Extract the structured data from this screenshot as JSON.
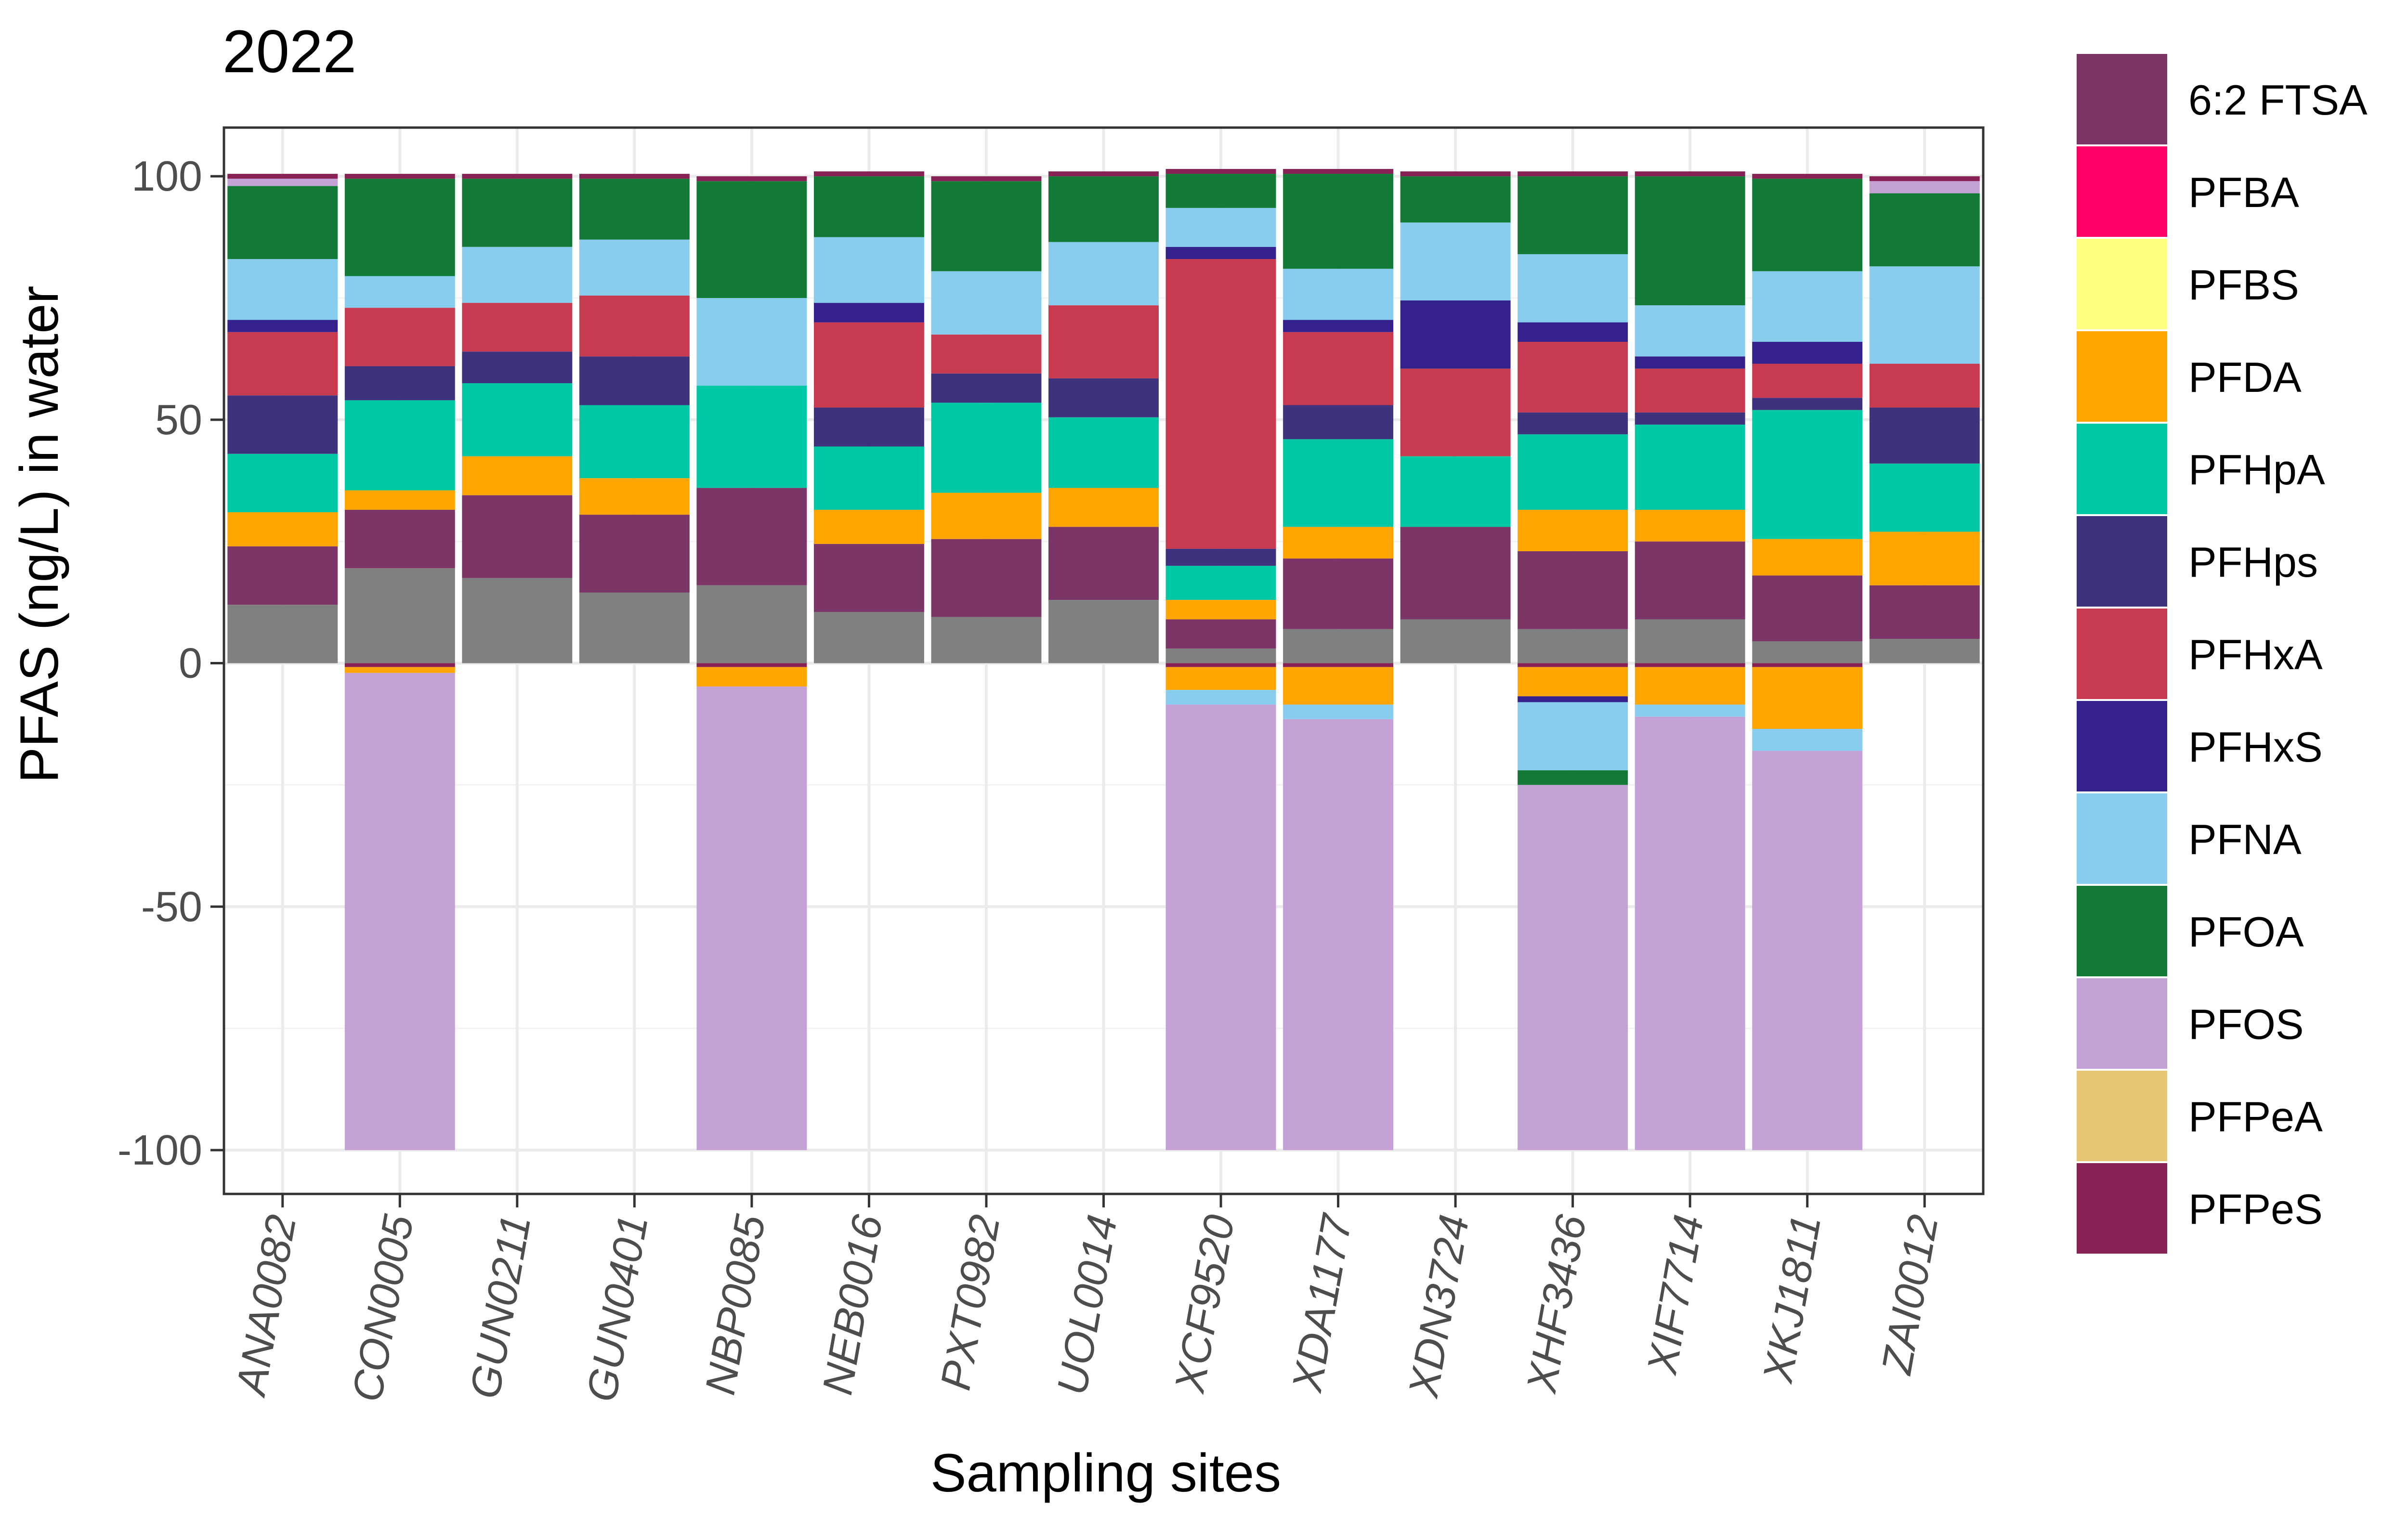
{
  "chart_data": {
    "type": "bar",
    "stacked": true,
    "title": "2022",
    "xlabel": "Sampling sites",
    "ylabel": "PFAS (ng/L) in water",
    "ylim": [
      -109,
      110
    ],
    "yticks": [
      -100,
      -50,
      0,
      50,
      100
    ],
    "ytick_labels": [
      "-100",
      "-50",
      "0",
      "50",
      "100"
    ],
    "grid": true,
    "legend_position": "right",
    "categories": [
      "ANA0082",
      "CON0005",
      "GUN0211",
      "GUN0401",
      "NBP0085",
      "NEB0016",
      "PXT0982",
      "UOL0014",
      "XCF9520",
      "XDA1177",
      "XDN3724",
      "XHF3436",
      "XIF7714",
      "XKJ1811",
      "ZAI0012"
    ],
    "legend": [
      {
        "name": "6:2 FTSA",
        "color": "#7b3567"
      },
      {
        "name": "PFBA",
        "color": "#ff0066"
      },
      {
        "name": "PFBS",
        "color": "#ffff80"
      },
      {
        "name": "PFDA",
        "color": "#ffa500"
      },
      {
        "name": "PFHpA",
        "color": "#00c8a4"
      },
      {
        "name": "PFHps",
        "color": "#3f327c"
      },
      {
        "name": "PFHxA",
        "color": "#c83a50"
      },
      {
        "name": "PFHxS",
        "color": "#34218b"
      },
      {
        "name": "PFNA",
        "color": "#88ccee"
      },
      {
        "name": "PFOA",
        "color": "#137936"
      },
      {
        "name": "PFOS",
        "color": "#c4a2d6"
      },
      {
        "name": "PFPeA",
        "color": "#e6c673"
      },
      {
        "name": "PFPeS",
        "color": "#882255"
      }
    ],
    "unlabeled_segment_color": "#808080",
    "positive_stacks": [
      [
        {
          "c": "#808080",
          "v": 12
        },
        {
          "c": "#7b3567",
          "v": 12
        },
        {
          "c": "#ffa500",
          "v": 7
        },
        {
          "c": "#00c8a4",
          "v": 12
        },
        {
          "c": "#3f327c",
          "v": 12
        },
        {
          "c": "#c83a50",
          "v": 13
        },
        {
          "c": "#34218b",
          "v": 2.5
        },
        {
          "c": "#88ccee",
          "v": 12.5
        },
        {
          "c": "#137936",
          "v": 15
        },
        {
          "c": "#c4a2d6",
          "v": 1.5
        },
        {
          "c": "#882255",
          "v": 1
        }
      ],
      [
        {
          "c": "#808080",
          "v": 19.5
        },
        {
          "c": "#7b3567",
          "v": 12
        },
        {
          "c": "#ffa500",
          "v": 4
        },
        {
          "c": "#00c8a4",
          "v": 18.5
        },
        {
          "c": "#3f327c",
          "v": 7
        },
        {
          "c": "#c83a50",
          "v": 12
        },
        {
          "c": "#88ccee",
          "v": 6.5
        },
        {
          "c": "#137936",
          "v": 20
        },
        {
          "c": "#882255",
          "v": 1
        }
      ],
      [
        {
          "c": "#808080",
          "v": 17.5
        },
        {
          "c": "#7b3567",
          "v": 17
        },
        {
          "c": "#ffa500",
          "v": 8
        },
        {
          "c": "#00c8a4",
          "v": 15
        },
        {
          "c": "#3f327c",
          "v": 6.5
        },
        {
          "c": "#c83a50",
          "v": 10
        },
        {
          "c": "#88ccee",
          "v": 11.5
        },
        {
          "c": "#137936",
          "v": 14
        },
        {
          "c": "#882255",
          "v": 1
        }
      ],
      [
        {
          "c": "#808080",
          "v": 14.5
        },
        {
          "c": "#7b3567",
          "v": 16
        },
        {
          "c": "#ffa500",
          "v": 7.5
        },
        {
          "c": "#00c8a4",
          "v": 15
        },
        {
          "c": "#3f327c",
          "v": 10
        },
        {
          "c": "#c83a50",
          "v": 12.5
        },
        {
          "c": "#88ccee",
          "v": 11.5
        },
        {
          "c": "#137936",
          "v": 12.5
        },
        {
          "c": "#882255",
          "v": 1
        }
      ],
      [
        {
          "c": "#808080",
          "v": 16
        },
        {
          "c": "#7b3567",
          "v": 20
        },
        {
          "c": "#00c8a4",
          "v": 21
        },
        {
          "c": "#88ccee",
          "v": 18
        },
        {
          "c": "#137936",
          "v": 24
        },
        {
          "c": "#882255",
          "v": 1
        }
      ],
      [
        {
          "c": "#808080",
          "v": 10.5
        },
        {
          "c": "#7b3567",
          "v": 14
        },
        {
          "c": "#ffa500",
          "v": 7
        },
        {
          "c": "#00c8a4",
          "v": 13
        },
        {
          "c": "#3f327c",
          "v": 8
        },
        {
          "c": "#c83a50",
          "v": 17.5
        },
        {
          "c": "#34218b",
          "v": 4
        },
        {
          "c": "#88ccee",
          "v": 13.5
        },
        {
          "c": "#137936",
          "v": 12.5
        },
        {
          "c": "#882255",
          "v": 1
        }
      ],
      [
        {
          "c": "#808080",
          "v": 9.5
        },
        {
          "c": "#7b3567",
          "v": 16
        },
        {
          "c": "#ffa500",
          "v": 9.5
        },
        {
          "c": "#00c8a4",
          "v": 18.5
        },
        {
          "c": "#3f327c",
          "v": 6
        },
        {
          "c": "#c83a50",
          "v": 8
        },
        {
          "c": "#88ccee",
          "v": 13
        },
        {
          "c": "#137936",
          "v": 18.5
        },
        {
          "c": "#882255",
          "v": 1
        }
      ],
      [
        {
          "c": "#808080",
          "v": 13
        },
        {
          "c": "#7b3567",
          "v": 15
        },
        {
          "c": "#ffa500",
          "v": 8
        },
        {
          "c": "#00c8a4",
          "v": 14.5
        },
        {
          "c": "#3f327c",
          "v": 8
        },
        {
          "c": "#c83a50",
          "v": 15
        },
        {
          "c": "#88ccee",
          "v": 13
        },
        {
          "c": "#137936",
          "v": 13.5
        },
        {
          "c": "#882255",
          "v": 1
        }
      ],
      [
        {
          "c": "#808080",
          "v": 3
        },
        {
          "c": "#7b3567",
          "v": 6
        },
        {
          "c": "#ffa500",
          "v": 4
        },
        {
          "c": "#00c8a4",
          "v": 7
        },
        {
          "c": "#3f327c",
          "v": 3.5
        },
        {
          "c": "#c83a50",
          "v": 59.5
        },
        {
          "c": "#34218b",
          "v": 2.5
        },
        {
          "c": "#88ccee",
          "v": 8
        },
        {
          "c": "#137936",
          "v": 7
        },
        {
          "c": "#882255",
          "v": 1
        }
      ],
      [
        {
          "c": "#808080",
          "v": 7
        },
        {
          "c": "#7b3567",
          "v": 14.5
        },
        {
          "c": "#ffa500",
          "v": 6.5
        },
        {
          "c": "#00c8a4",
          "v": 18
        },
        {
          "c": "#3f327c",
          "v": 7
        },
        {
          "c": "#c83a50",
          "v": 15
        },
        {
          "c": "#34218b",
          "v": 2.5
        },
        {
          "c": "#88ccee",
          "v": 10.5
        },
        {
          "c": "#137936",
          "v": 19.5
        },
        {
          "c": "#882255",
          "v": 1
        }
      ],
      [
        {
          "c": "#808080",
          "v": 9
        },
        {
          "c": "#7b3567",
          "v": 19
        },
        {
          "c": "#00c8a4",
          "v": 14.5
        },
        {
          "c": "#c83a50",
          "v": 18
        },
        {
          "c": "#34218b",
          "v": 14
        },
        {
          "c": "#88ccee",
          "v": 16
        },
        {
          "c": "#137936",
          "v": 9.5
        },
        {
          "c": "#882255",
          "v": 1
        }
      ],
      [
        {
          "c": "#808080",
          "v": 7
        },
        {
          "c": "#7b3567",
          "v": 16
        },
        {
          "c": "#ffa500",
          "v": 8.5
        },
        {
          "c": "#00c8a4",
          "v": 15.5
        },
        {
          "c": "#3f327c",
          "v": 4.5
        },
        {
          "c": "#c83a50",
          "v": 14.5
        },
        {
          "c": "#34218b",
          "v": 4
        },
        {
          "c": "#88ccee",
          "v": 14
        },
        {
          "c": "#137936",
          "v": 16
        },
        {
          "c": "#882255",
          "v": 1
        }
      ],
      [
        {
          "c": "#808080",
          "v": 9
        },
        {
          "c": "#7b3567",
          "v": 16
        },
        {
          "c": "#ffa500",
          "v": 6.5
        },
        {
          "c": "#00c8a4",
          "v": 17.5
        },
        {
          "c": "#3f327c",
          "v": 2.5
        },
        {
          "c": "#c83a50",
          "v": 9
        },
        {
          "c": "#34218b",
          "v": 2.5
        },
        {
          "c": "#88ccee",
          "v": 10.5
        },
        {
          "c": "#137936",
          "v": 26.5
        },
        {
          "c": "#882255",
          "v": 1
        }
      ],
      [
        {
          "c": "#808080",
          "v": 4.5
        },
        {
          "c": "#7b3567",
          "v": 13.5
        },
        {
          "c": "#ffa500",
          "v": 7.5
        },
        {
          "c": "#00c8a4",
          "v": 26.5
        },
        {
          "c": "#3f327c",
          "v": 2.5
        },
        {
          "c": "#c83a50",
          "v": 7
        },
        {
          "c": "#34218b",
          "v": 4.5
        },
        {
          "c": "#88ccee",
          "v": 14.5
        },
        {
          "c": "#137936",
          "v": 19
        },
        {
          "c": "#882255",
          "v": 1
        }
      ],
      [
        {
          "c": "#808080",
          "v": 5
        },
        {
          "c": "#7b3567",
          "v": 11
        },
        {
          "c": "#ffa500",
          "v": 11
        },
        {
          "c": "#00c8a4",
          "v": 14
        },
        {
          "c": "#3f327c",
          "v": 11.5
        },
        {
          "c": "#c83a50",
          "v": 9
        },
        {
          "c": "#88ccee",
          "v": 20
        },
        {
          "c": "#137936",
          "v": 15
        },
        {
          "c": "#c4a2d6",
          "v": 2.5
        },
        {
          "c": "#882255",
          "v": 1
        }
      ]
    ],
    "negative_stacks": [
      [],
      [
        {
          "c": "#882255",
          "v": 0.8
        },
        {
          "c": "#ffa500",
          "v": 1.2
        },
        {
          "c": "#c4a2d6",
          "v": 98
        }
      ],
      [],
      [],
      [
        {
          "c": "#882255",
          "v": 0.8
        },
        {
          "c": "#ffa500",
          "v": 4
        },
        {
          "c": "#c4a2d6",
          "v": 95.2
        }
      ],
      [],
      [],
      [],
      [
        {
          "c": "#882255",
          "v": 0.8
        },
        {
          "c": "#ffa500",
          "v": 4.7
        },
        {
          "c": "#88ccee",
          "v": 3
        },
        {
          "c": "#c4a2d6",
          "v": 91.5
        }
      ],
      [
        {
          "c": "#882255",
          "v": 0.8
        },
        {
          "c": "#ffa500",
          "v": 7.7
        },
        {
          "c": "#88ccee",
          "v": 3
        },
        {
          "c": "#c4a2d6",
          "v": 88.5
        }
      ],
      [],
      [
        {
          "c": "#882255",
          "v": 0.8
        },
        {
          "c": "#ffa500",
          "v": 6
        },
        {
          "c": "#34218b",
          "v": 1.2
        },
        {
          "c": "#88ccee",
          "v": 14
        },
        {
          "c": "#137936",
          "v": 3
        },
        {
          "c": "#c4a2d6",
          "v": 75
        }
      ],
      [
        {
          "c": "#882255",
          "v": 0.8
        },
        {
          "c": "#ffa500",
          "v": 7.7
        },
        {
          "c": "#88ccee",
          "v": 2.5
        },
        {
          "c": "#c4a2d6",
          "v": 89
        }
      ],
      [
        {
          "c": "#882255",
          "v": 0.8
        },
        {
          "c": "#ffa500",
          "v": 12.7
        },
        {
          "c": "#88ccee",
          "v": 4.5
        },
        {
          "c": "#c4a2d6",
          "v": 82
        }
      ],
      []
    ]
  }
}
